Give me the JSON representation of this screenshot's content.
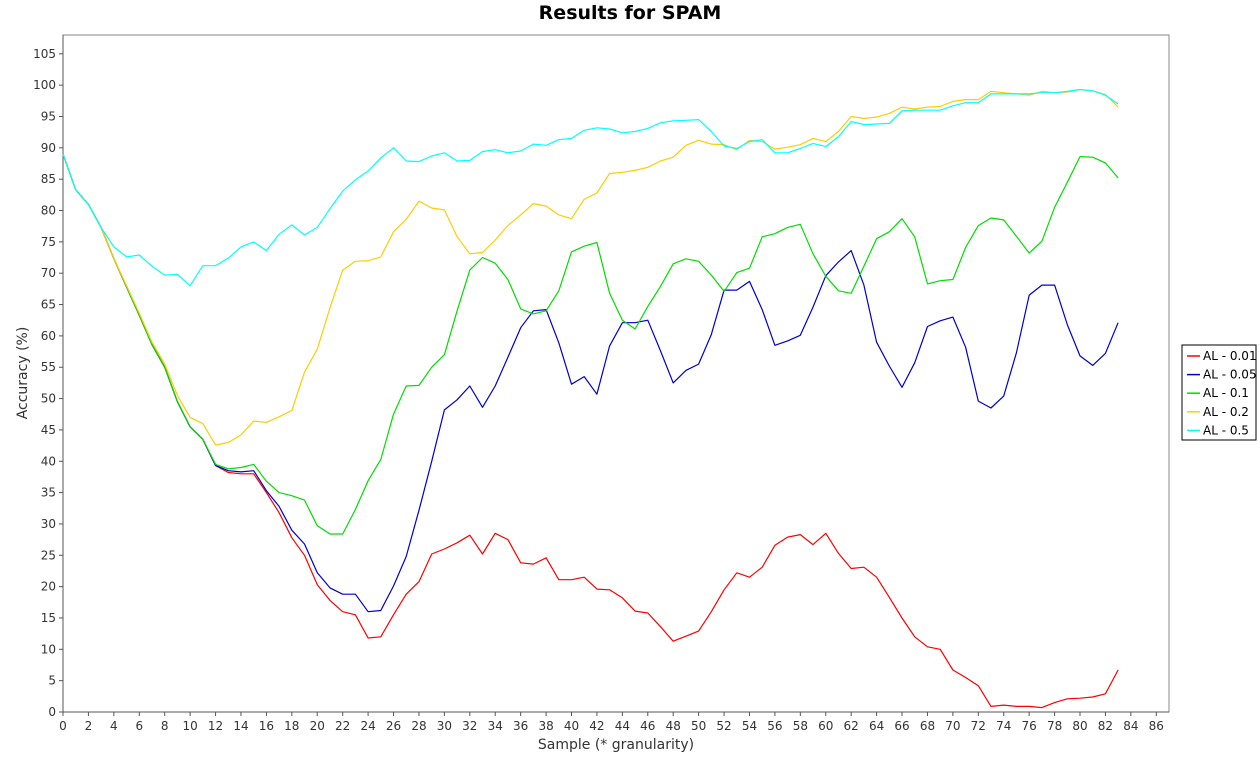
{
  "chart_data": {
    "type": "line",
    "title": "Results for SPAM",
    "xlabel": "Sample (* granularity)",
    "ylabel": "Accuracy (%)",
    "xlim": [
      0,
      87
    ],
    "ylim": [
      0,
      108
    ],
    "x_ticks": [
      0,
      2,
      4,
      6,
      8,
      10,
      12,
      14,
      16,
      18,
      20,
      22,
      24,
      26,
      28,
      30,
      32,
      34,
      36,
      38,
      40,
      42,
      44,
      46,
      48,
      50,
      52,
      54,
      56,
      58,
      60,
      62,
      64,
      66,
      68,
      70,
      72,
      74,
      76,
      78,
      80,
      82,
      84,
      86
    ],
    "y_ticks": [
      0,
      5,
      10,
      15,
      20,
      25,
      30,
      35,
      40,
      45,
      50,
      55,
      60,
      65,
      70,
      75,
      80,
      85,
      90,
      95,
      100,
      105
    ],
    "grid": false,
    "legend_position": "right",
    "series": [
      {
        "name": "AL - 0.01",
        "color": "#ff0000",
        "values": [
          89,
          83.3,
          81,
          77.3,
          72.3,
          67.8,
          63.3,
          58.6,
          55,
          49.5,
          45.5,
          43.5,
          39.3,
          38.2,
          38,
          38,
          35,
          31.8,
          27.8,
          25,
          20.3,
          17.8,
          16,
          15.5,
          11.8,
          12,
          15.5,
          18.8,
          20.8,
          25.2,
          26,
          27,
          28.2,
          25.2,
          28.5,
          27.5,
          23.8,
          23.6,
          24.6,
          21.1,
          21.1,
          21.5,
          19.6,
          19.5,
          18.2,
          16.1,
          15.8,
          13.6,
          11.3,
          12.1,
          12.9,
          16,
          19.5,
          22.2,
          21.5,
          23.1,
          26.6,
          27.9,
          28.3,
          26.7,
          28.5,
          25.3,
          22.9,
          23.1,
          21.5,
          18.3,
          15,
          12,
          10.4,
          10,
          6.7,
          5.5,
          4.2,
          0.9,
          1.1,
          0.9,
          0.9,
          0.7,
          1.5,
          2.1,
          2.2,
          2.4,
          2.9,
          6.7
        ]
      },
      {
        "name": "AL - 0.05",
        "color": "#0000cc",
        "values": [
          89,
          83.3,
          81,
          77.3,
          72.3,
          67.8,
          63.3,
          58.6,
          55,
          49.5,
          45.5,
          43.5,
          39.3,
          38.5,
          38.3,
          38.5,
          35.3,
          32.8,
          29,
          26.8,
          22.2,
          19.8,
          18.8,
          18.8,
          16,
          16.2,
          20.1,
          24.8,
          32.2,
          40,
          48.2,
          49.8,
          52,
          48.6,
          52,
          56.6,
          61.3,
          64,
          64.2,
          58.9,
          52.3,
          53.5,
          50.7,
          58.4,
          62.1,
          62.1,
          62.5,
          57.6,
          52.5,
          54.5,
          55.5,
          60.2,
          67.3,
          67.3,
          68.7,
          64.2,
          58.5,
          59.2,
          60.1,
          64.6,
          69.6,
          71.8,
          73.6,
          68.1,
          59,
          55.2,
          51.8,
          55.7,
          61.5,
          62.4,
          63,
          58.2,
          49.6,
          48.5,
          50.4,
          57.3,
          66.5,
          68.1,
          68.1,
          61.8,
          56.8,
          55.3,
          57.2,
          62.1
        ]
      },
      {
        "name": "AL - 0.1",
        "color": "#00dd00",
        "values": [
          89,
          83.3,
          81,
          77.3,
          72.3,
          67.8,
          63.3,
          58.6,
          55,
          49.5,
          45.5,
          43.5,
          39.5,
          38.8,
          39,
          39.5,
          36.8,
          35,
          34.5,
          33.8,
          29.7,
          28.4,
          28.4,
          32.3,
          36.9,
          40.3,
          47.5,
          52,
          52.1,
          55,
          57,
          64,
          70.5,
          72.5,
          71.6,
          69,
          64.3,
          63.5,
          64,
          67.2,
          73.4,
          74.3,
          74.9,
          66.8,
          62.5,
          61.1,
          64.7,
          67.9,
          71.5,
          72.3,
          71.9,
          69.7,
          67.1,
          70.1,
          70.8,
          75.8,
          76.3,
          77.3,
          77.8,
          73.1,
          69.5,
          67.2,
          66.8,
          71.1,
          75.5,
          76.6,
          78.7,
          75.8,
          68.3,
          68.8,
          69,
          74.1,
          77.6,
          78.8,
          78.5,
          75.9,
          73.2,
          75.1,
          80.5,
          84.5,
          88.6,
          88.5,
          87.6,
          85.2
        ]
      },
      {
        "name": "AL - 0.2",
        "color": "#ffcc00",
        "values": [
          89,
          83.3,
          81,
          77.3,
          72.3,
          68,
          63.6,
          59,
          55.5,
          50.5,
          47,
          46,
          42.6,
          43,
          44.2,
          46.4,
          46.2,
          47.1,
          48.1,
          54.2,
          57.9,
          64.5,
          70.5,
          71.9,
          72,
          72.6,
          76.6,
          78.6,
          81.5,
          80.4,
          80.1,
          75.8,
          73.1,
          73.3,
          75.3,
          77.6,
          79.3,
          81.1,
          80.7,
          79.3,
          78.7,
          81.8,
          82.8,
          85.9,
          86.1,
          86.4,
          86.9,
          87.9,
          88.5,
          90.4,
          91.2,
          90.6,
          90.5,
          89.7,
          91.2,
          91,
          89.8,
          90.1,
          90.5,
          91.5,
          91,
          92.6,
          95,
          94.7,
          94.9,
          95.5,
          96.5,
          96.2,
          96.5,
          96.6,
          97.4,
          97.7,
          97.7,
          99,
          98.8,
          98.6,
          98.4,
          99,
          98.8,
          98.9,
          99.3,
          99.1,
          98.5,
          96.5
        ]
      },
      {
        "name": "AL - 0.5",
        "color": "#00ffff",
        "values": [
          89,
          83.3,
          81,
          77.3,
          74.2,
          72.6,
          72.9,
          71.1,
          69.7,
          69.8,
          68,
          71.2,
          71.2,
          72.4,
          74.2,
          75,
          73.6,
          76.2,
          77.7,
          76.1,
          77.3,
          80.3,
          83.1,
          84.9,
          86.3,
          88.4,
          90,
          87.9,
          87.8,
          88.7,
          89.2,
          87.9,
          88,
          89.4,
          89.7,
          89.2,
          89.5,
          90.6,
          90.4,
          91.3,
          91.5,
          92.8,
          93.2,
          93,
          92.4,
          92.6,
          93.1,
          94,
          94.3,
          94.4,
          94.5,
          92.6,
          90.3,
          89.9,
          91,
          91.3,
          89.2,
          89.2,
          89.9,
          90.7,
          90.2,
          91.8,
          94.2,
          93.7,
          93.8,
          93.9,
          95.9,
          96,
          96,
          96,
          96.7,
          97.2,
          97.2,
          98.6,
          98.6,
          98.6,
          98.6,
          98.8,
          98.8,
          99,
          99.3,
          99.1,
          98.4,
          97
        ]
      }
    ]
  }
}
